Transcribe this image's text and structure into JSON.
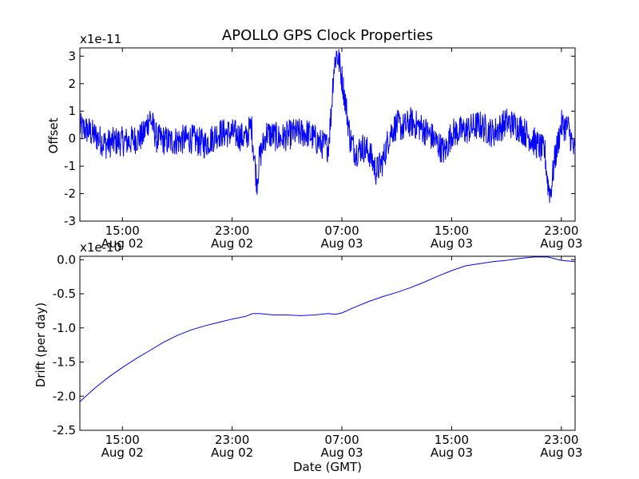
{
  "title": "APOLLO GPS Clock Properties",
  "xlabel": "Date (GMT)",
  "line_color": "#0000ff",
  "x_ticks": [
    {
      "time": "15:00",
      "date": "Aug 02",
      "hours": 15
    },
    {
      "time": "23:00",
      "date": "Aug 02",
      "hours": 23
    },
    {
      "time": "07:00",
      "date": "Aug 03",
      "hours": 31
    },
    {
      "time": "15:00",
      "date": "Aug 03",
      "hours": 39
    },
    {
      "time": "23:00",
      "date": "Aug 03",
      "hours": 47
    }
  ],
  "chart_data": [
    {
      "type": "line",
      "name": "offset",
      "ylabel": "Offset",
      "scale_label": "x1e-11",
      "x_unit": "hours since Aug 02 00:00 GMT",
      "xlim": [
        11.9,
        48.0
      ],
      "ylim": [
        -3,
        3.3
      ],
      "yticks": [
        3,
        2,
        1,
        0,
        -1,
        -2,
        -3
      ],
      "ytick_labels": [
        "3",
        "2",
        "1",
        "0",
        "-1",
        "-2",
        "-3"
      ],
      "note": "noisy series (~±0.6); key points read from figure",
      "x": [
        11.9,
        12.5,
        13.0,
        13.8,
        14.5,
        15.5,
        16.5,
        17.0,
        17.5,
        18.5,
        20.0,
        21.0,
        22.0,
        23.0,
        24.0,
        24.4,
        24.6,
        24.8,
        25.0,
        25.5,
        26.5,
        27.5,
        28.5,
        29.5,
        30.0,
        30.2,
        30.4,
        30.6,
        30.8,
        31.0,
        31.3,
        31.6,
        32.0,
        32.5,
        33.0,
        33.5,
        34.0,
        34.5,
        35.0,
        35.5,
        36.0,
        36.8,
        37.5,
        38.0,
        38.5,
        39.0,
        40.0,
        41.0,
        42.0,
        43.0,
        44.0,
        45.0,
        45.8,
        46.0,
        46.2,
        46.5,
        47.0,
        47.5,
        48.0
      ],
      "y": [
        0.4,
        0.3,
        0.1,
        -0.2,
        -0.1,
        -0.1,
        0.1,
        0.8,
        0.0,
        -0.1,
        0.0,
        -0.2,
        0.2,
        0.2,
        0.0,
        0.5,
        -0.6,
        -1.6,
        -0.7,
        0.2,
        0.0,
        0.2,
        0.2,
        -0.2,
        -0.3,
        0.8,
        2.5,
        3.1,
        2.8,
        2.2,
        1.2,
        0.0,
        -0.5,
        -0.3,
        -0.5,
        -1.2,
        -0.8,
        0.2,
        0.5,
        0.4,
        0.6,
        0.4,
        0.1,
        -0.2,
        -0.5,
        0.2,
        0.3,
        0.5,
        0.2,
        0.6,
        0.4,
        -0.1,
        -0.5,
        -1.6,
        -2.0,
        -0.8,
        0.5,
        0.4,
        -0.6
      ]
    },
    {
      "type": "line",
      "name": "drift",
      "ylabel": "Drift (per day)",
      "scale_label": "x1e-10",
      "x_unit": "hours since Aug 02 00:00 GMT",
      "xlim": [
        11.9,
        48.0
      ],
      "ylim": [
        -2.5,
        0.05
      ],
      "yticks": [
        0.0,
        -0.5,
        -1.0,
        -1.5,
        -2.0,
        -2.5
      ],
      "ytick_labels": [
        "0.0",
        "-0.5",
        "-1.0",
        "-1.5",
        "-2.0",
        "-2.5"
      ],
      "x": [
        11.9,
        13.0,
        14.0,
        15.0,
        16.0,
        17.0,
        18.0,
        19.0,
        20.0,
        21.0,
        22.0,
        23.0,
        24.0,
        24.5,
        25.0,
        26.0,
        27.0,
        28.0,
        29.0,
        30.0,
        30.5,
        31.0,
        32.0,
        33.0,
        34.0,
        35.0,
        36.0,
        37.0,
        38.0,
        39.0,
        40.0,
        41.0,
        42.0,
        43.0,
        44.0,
        45.0,
        46.0,
        47.0,
        48.0
      ],
      "y": [
        -2.08,
        -1.88,
        -1.72,
        -1.58,
        -1.45,
        -1.33,
        -1.21,
        -1.11,
        -1.03,
        -0.97,
        -0.92,
        -0.87,
        -0.83,
        -0.79,
        -0.79,
        -0.81,
        -0.81,
        -0.82,
        -0.81,
        -0.79,
        -0.8,
        -0.78,
        -0.69,
        -0.61,
        -0.54,
        -0.48,
        -0.41,
        -0.33,
        -0.24,
        -0.16,
        -0.09,
        -0.06,
        -0.03,
        -0.01,
        0.02,
        0.04,
        0.04,
        -0.01,
        -0.03
      ]
    }
  ]
}
